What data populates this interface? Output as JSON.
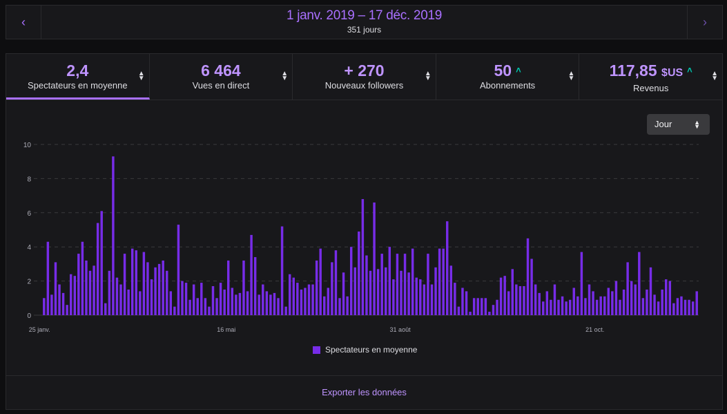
{
  "header": {
    "prev_icon": "chevron-left-icon",
    "next_icon": "chevron-right-icon",
    "range": "1 janv. 2019 – 17 déc. 2019",
    "days": "351 jours"
  },
  "stats": [
    {
      "value": "2,4",
      "unit": "",
      "label": "Spectateurs en moyenne",
      "up": false
    },
    {
      "value": "6 464",
      "unit": "",
      "label": "Vues en direct",
      "up": false
    },
    {
      "value": "+ 270",
      "unit": "",
      "label": "Nouveaux followers",
      "up": false
    },
    {
      "value": "50",
      "unit": "",
      "label": "Abonnements",
      "up": true
    },
    {
      "value": "117,85",
      "unit": "$US",
      "label": "Revenus",
      "up": true
    }
  ],
  "select": {
    "value": "Jour"
  },
  "export_label": "Exporter les données",
  "colors": {
    "bar": "#772ce8",
    "accent": "#a970ff",
    "up": "#00c8af"
  },
  "chart_data": {
    "type": "bar",
    "ylim": [
      0,
      10
    ],
    "yticks": [
      0,
      2,
      4,
      6,
      8,
      10
    ],
    "grid": true,
    "legend": "bottom-center",
    "series": [
      {
        "name": "Spectateurs en moyenne",
        "values": [
          1.0,
          4.3,
          1.2,
          3.1,
          1.8,
          1.3,
          0.6,
          2.4,
          2.3,
          3.6,
          4.3,
          3.2,
          2.6,
          2.9,
          5.4,
          6.1,
          0.7,
          2.6,
          9.3,
          2.2,
          1.8,
          3.6,
          1.5,
          3.9,
          3.8,
          1.4,
          3.7,
          3.1,
          2.1,
          2.8,
          3.0,
          3.2,
          2.6,
          1.4,
          0.5,
          5.3,
          2.0,
          1.9,
          0.9,
          1.8,
          1.0,
          1.9,
          1.0,
          0.5,
          1.7,
          1.0,
          1.9,
          1.5,
          3.2,
          1.6,
          1.2,
          1.3,
          3.2,
          1.4,
          4.7,
          3.4,
          1.2,
          1.8,
          1.4,
          1.2,
          1.3,
          1.0,
          5.2,
          0.5,
          2.4,
          2.2,
          1.9,
          1.5,
          1.6,
          1.8,
          1.8,
          3.2,
          3.9,
          1.1,
          1.6,
          3.1,
          3.8,
          1.0,
          2.5,
          1.1,
          4.0,
          2.8,
          4.9,
          6.8,
          3.5,
          2.6,
          6.6,
          2.7,
          3.6,
          2.8,
          4.0,
          2.1,
          3.6,
          2.6,
          3.6,
          2.5,
          3.9,
          2.2,
          2.1,
          1.8,
          3.6,
          1.8,
          2.8,
          3.9,
          3.9,
          5.5,
          2.9,
          1.9,
          0.5,
          1.6,
          1.4,
          0.2,
          1.0,
          1.0,
          1.0,
          1.0,
          0.2,
          0.6,
          0.9,
          2.2,
          2.3,
          1.4,
          2.7,
          1.8,
          1.7,
          1.7,
          4.5,
          3.3,
          1.8,
          1.3,
          0.8,
          1.4,
          0.9,
          1.8,
          0.9,
          1.1,
          0.8,
          0.9,
          1.6,
          1.1,
          3.7,
          1.0,
          1.8,
          1.4,
          0.9,
          1.1,
          1.1,
          1.6,
          1.4,
          2.0,
          0.9,
          1.5,
          3.1,
          2.0,
          1.8,
          3.7,
          1.0,
          1.5,
          2.8,
          1.2,
          0.8,
          1.5,
          2.1,
          2.0,
          0.7,
          1.0,
          1.1,
          0.9,
          0.9,
          0.8,
          1.4
        ]
      }
    ],
    "x_tick_labels": [
      {
        "label": "25 janv.",
        "index": 0
      },
      {
        "label": "16 mai",
        "index": 49
      },
      {
        "label": "31 août",
        "index": 94
      },
      {
        "label": "21 oct.",
        "index": 145
      }
    ]
  }
}
